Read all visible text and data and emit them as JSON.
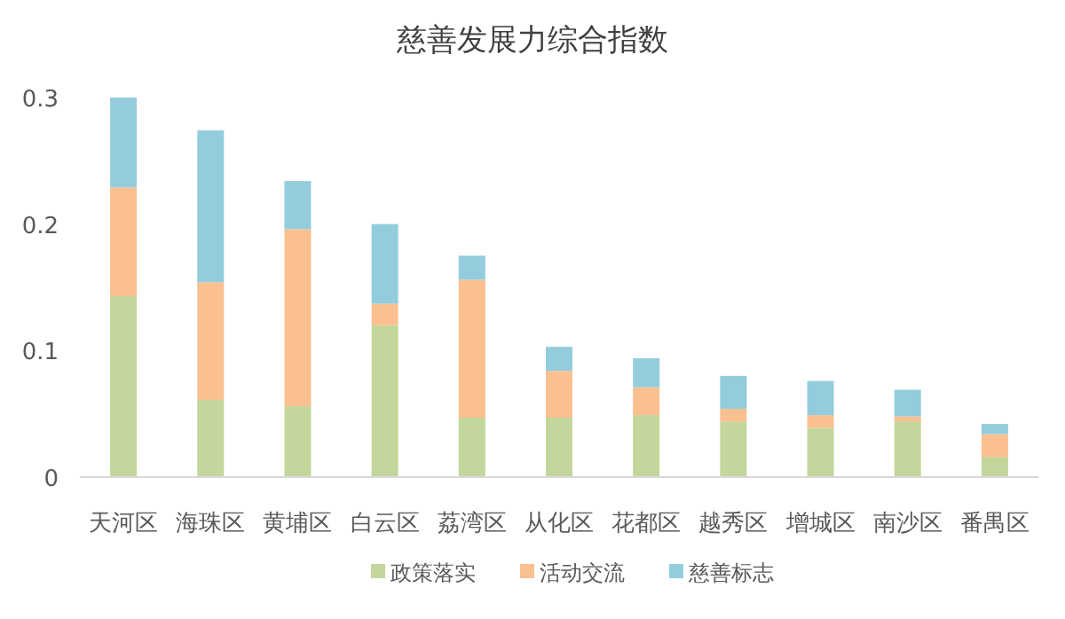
{
  "chart_data": {
    "type": "bar",
    "title": "慈善发展力综合指数",
    "stacked": true,
    "categories": [
      "天河区",
      "海珠区",
      "黄埔区",
      "白云区",
      "荔湾区",
      "从化区",
      "花都区",
      "越秀区",
      "增城区",
      "南沙区",
      "番禺区"
    ],
    "series": [
      {
        "name": "政策落实",
        "color": "#c3d69b",
        "values": [
          0.143,
          0.061,
          0.056,
          0.12,
          0.047,
          0.047,
          0.049,
          0.044,
          0.039,
          0.044,
          0.016
        ]
      },
      {
        "name": "活动交流",
        "color": "#fac090",
        "values": [
          0.086,
          0.093,
          0.14,
          0.017,
          0.109,
          0.037,
          0.022,
          0.01,
          0.01,
          0.004,
          0.018
        ]
      },
      {
        "name": "慈善标志",
        "color": "#93cddd",
        "values": [
          0.071,
          0.12,
          0.038,
          0.063,
          0.019,
          0.019,
          0.023,
          0.026,
          0.027,
          0.021,
          0.008
        ]
      }
    ],
    "ylim": [
      0,
      0.3
    ],
    "yticks": [
      0,
      0.1,
      0.2,
      0.3
    ],
    "grid": false,
    "legend": "bottom"
  }
}
